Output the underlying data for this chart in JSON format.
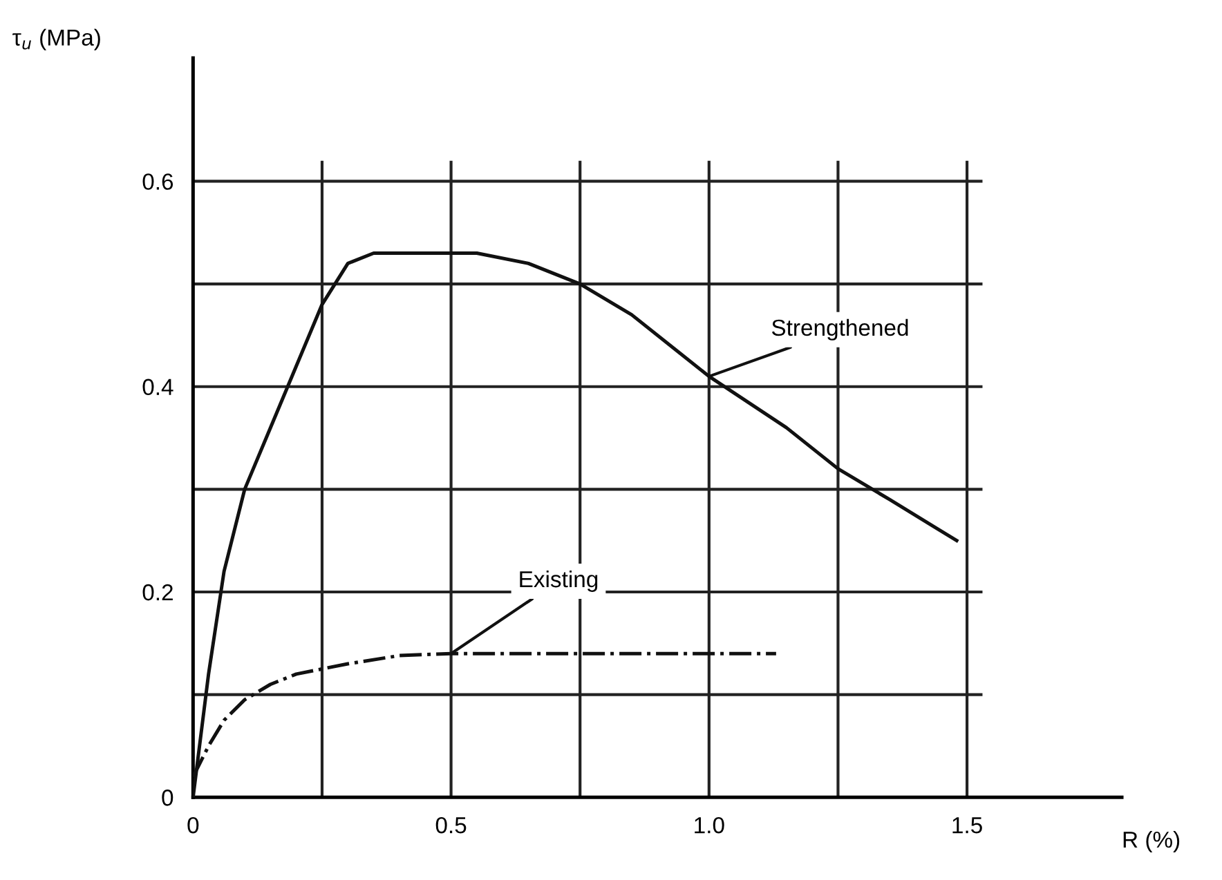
{
  "chart_data": {
    "type": "line",
    "xlabel": "R (%)",
    "ylabel": "τ$_{u}$ (MPa)",
    "xlim": [
      0,
      1.8
    ],
    "ylim": [
      0,
      0.72
    ],
    "xticks": [
      0,
      {
        "value": 0.25,
        "label": null
      },
      0.5,
      {
        "value": 0.75,
        "label": null
      },
      {
        "value": 1.0,
        "label": "1.0"
      },
      {
        "value": 1.25,
        "label": null
      },
      1.5
    ],
    "yticks": [
      0,
      {
        "value": 0.1,
        "label": null
      },
      0.2,
      {
        "value": 0.3,
        "label": null
      },
      0.4,
      {
        "value": 0.5,
        "label": null
      },
      0.6
    ],
    "grid": true,
    "legend": false,
    "series": [
      {
        "name": "Strengthened",
        "color": "#111111",
        "line_style": "solid",
        "x": [
          0,
          0.03,
          0.06,
          0.1,
          0.15,
          0.2,
          0.25,
          0.3,
          0.35,
          0.45,
          0.55,
          0.65,
          0.75,
          0.85,
          1.0,
          1.15,
          1.25,
          1.35,
          1.48
        ],
        "values": [
          0,
          0.12,
          0.22,
          0.3,
          0.36,
          0.42,
          0.48,
          0.52,
          0.53,
          0.53,
          0.53,
          0.52,
          0.5,
          0.47,
          0.41,
          0.36,
          0.32,
          0.29,
          0.25
        ]
      },
      {
        "name": "Existing",
        "color": "#111111",
        "line_style": "dashdot",
        "x": [
          0,
          0.03,
          0.06,
          0.1,
          0.15,
          0.2,
          0.3,
          0.4,
          0.5,
          0.7,
          0.9,
          1.13
        ],
        "values": [
          0.02,
          0.05,
          0.075,
          0.095,
          0.11,
          0.12,
          0.13,
          0.138,
          0.14,
          0.14,
          0.14,
          0.14
        ]
      }
    ]
  }
}
